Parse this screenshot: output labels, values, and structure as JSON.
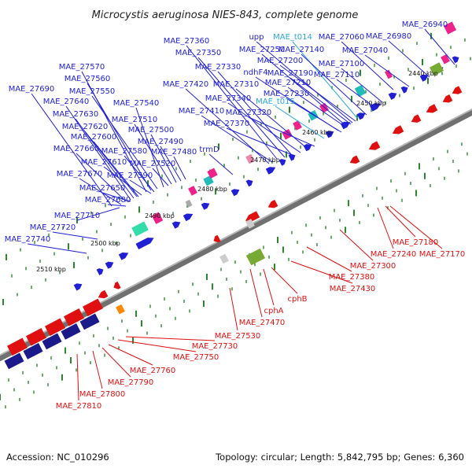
{
  "title": "Microcystis aeruginosa NIES-843, complete genome",
  "footer": {
    "accession": "Accession: NC_010296",
    "summary": "Topology: circular; Length: 5,842,795 bp; Genes: 6,360"
  },
  "colors": {
    "forward": "#1f1fd6",
    "reverse": "#e01010",
    "trna": "#2aa8d8",
    "backbone": "#707070",
    "tick": "#2a8a2a"
  },
  "kbp_ticks": [
    "2440 kbp",
    "2450 kbp",
    "2460 kbp",
    "2470 kbp",
    "2480 kbp",
    "2490 kbp",
    "2500 kbp",
    "2510 kbp"
  ],
  "forward_labels": [
    "MAE_26940",
    "MAE_26980",
    "MAE_27040",
    "MAE_27060",
    "MAE_27100",
    "MAE_27110",
    "MAE_t014",
    "upp",
    "MAE_27360",
    "MAE_27350",
    "MAE_27250",
    "MAE_27140",
    "MAE_27330",
    "ndhF4",
    "MAE_27200",
    "MAE_27190",
    "MAE_27210",
    "MAE_27230",
    "MAE_27420",
    "MAE_27310",
    "MAE_27340",
    "MAE_t015",
    "MAE_27410",
    "MAE_27320",
    "MAE_27370",
    "MAE_27570",
    "MAE_27560",
    "MAE_27550",
    "MAE_27540",
    "MAE_27690",
    "MAE_27640",
    "MAE_27630",
    "MAE_27510",
    "MAE_27620",
    "MAE_27500",
    "MAE_27600",
    "MAE_27490",
    "MAE_27660",
    "MAE_27580",
    "MAE_27480",
    "trmD",
    "MAE_27610",
    "MAE_27520",
    "MAE_27670",
    "MAE_27590",
    "MAE_27650",
    "MAE_27680",
    "MAE_27710",
    "MAE_27720",
    "MAE_27740"
  ],
  "reverse_labels": [
    "MAE_27180",
    "MAE_27240",
    "MAE_27170",
    "MAE_27300",
    "MAE_27380",
    "MAE_27430",
    "cphB",
    "cphA",
    "MAE_27470",
    "MAE_27530",
    "MAE_27730",
    "MAE_27750",
    "MAE_27760",
    "MAE_27790",
    "MAE_27800",
    "MAE_27810"
  ]
}
